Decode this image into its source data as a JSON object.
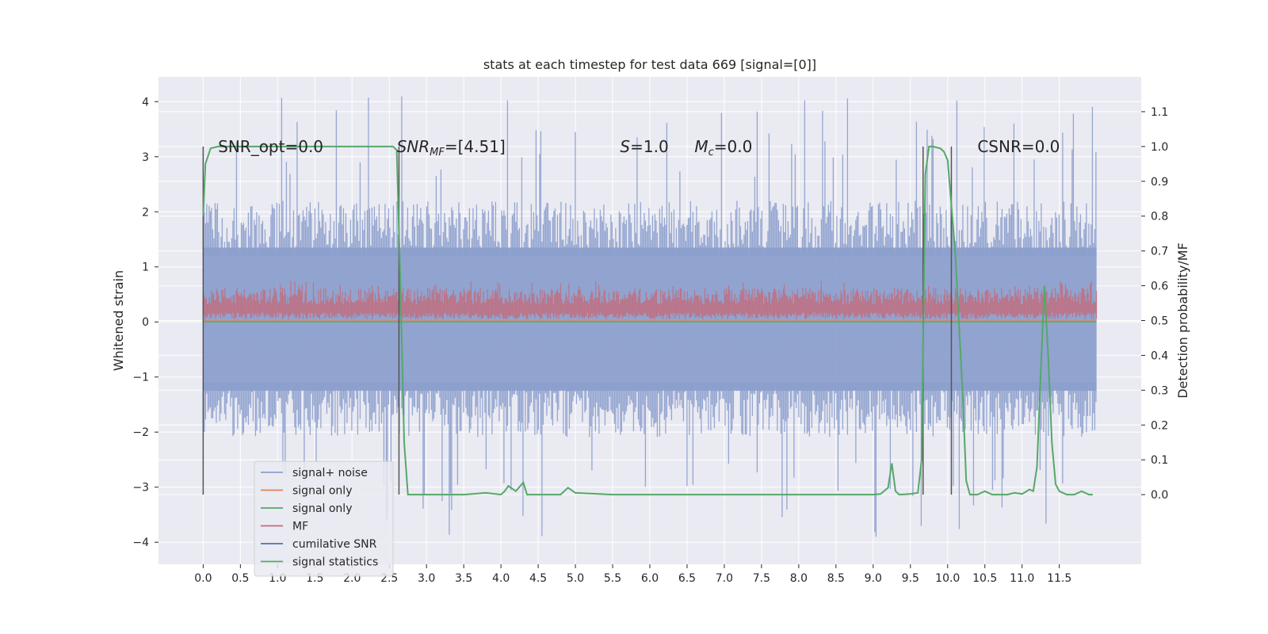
{
  "chart_data": {
    "type": "line",
    "title": "stats at each timestep for test data 669 [signal=[0]]",
    "xlabel": "",
    "ylabel_left": "Whitened strain",
    "ylabel_right": "Detection probability/MF",
    "xlim": [
      -0.6,
      12.6
    ],
    "ylim_left": [
      -4.4,
      4.45
    ],
    "ylim_right": [
      -0.2,
      1.2
    ],
    "x_ticks": [
      "0.0",
      "0.5",
      "1.0",
      "1.5",
      "2.0",
      "2.5",
      "3.0",
      "3.5",
      "4.0",
      "4.5",
      "5.0",
      "5.5",
      "6.0",
      "6.5",
      "7.0",
      "7.5",
      "8.0",
      "8.5",
      "9.0",
      "9.5",
      "10.0",
      "10.5",
      "11.0",
      "11.5"
    ],
    "y_ticks_left": [
      "4",
      "3",
      "2",
      "1",
      "0",
      "−1",
      "−2",
      "−3",
      "−4"
    ],
    "y_ticks_right": [
      "1.1",
      "1.0",
      "0.9",
      "0.8",
      "0.7",
      "0.6",
      "0.5",
      "0.4",
      "0.3",
      "0.2",
      "0.1",
      "0.0"
    ],
    "grid": true,
    "legend_position": "lower-left",
    "colors": {
      "background": "#eaeaf2",
      "grid": "#ffffff",
      "noise": "#8c9fcc",
      "mf": "#c46b7a",
      "signal_orange": "#dd8452",
      "signal_green": "#55a868",
      "cumulative": "#4c72b0",
      "stats": "#55a868",
      "markers": "#555555"
    },
    "annotations": [
      {
        "text": "SNR_opt=0.0",
        "x": 0.2,
        "y": 3.2
      },
      {
        "text": "SNR_MF=[4.51]",
        "x": 2.6,
        "y": 3.2
      },
      {
        "text": "S=1.0",
        "x": 5.6,
        "y": 3.2
      },
      {
        "text": "M_c=0.0",
        "x": 6.6,
        "y": 3.2
      },
      {
        "text": "CSNR=0.0",
        "x": 10.4,
        "y": 3.2
      }
    ],
    "vertical_markers_x": [
      0.0,
      2.63,
      9.67,
      10.05
    ],
    "noise_envelope": {
      "x_range": [
        0.0,
        12.0
      ],
      "typical_min": -1.9,
      "typical_max": 2.2,
      "peaks_max": 4.1,
      "peaks_min": -3.9
    },
    "mf_band": {
      "x_range": [
        0.0,
        12.0
      ],
      "min": 0.05,
      "max": 0.75
    },
    "detection_probability": {
      "x": [
        0.0,
        0.03,
        0.1,
        0.2,
        0.5,
        1.0,
        1.5,
        2.0,
        2.4,
        2.55,
        2.6,
        2.65,
        2.7,
        2.75,
        3.0,
        3.5,
        3.8,
        4.0,
        4.05,
        4.1,
        4.2,
        4.3,
        4.35,
        4.5,
        4.8,
        4.9,
        5.0,
        5.5,
        6.0,
        7.0,
        8.0,
        9.0,
        9.1,
        9.2,
        9.25,
        9.3,
        9.35,
        9.5,
        9.6,
        9.65,
        9.7,
        9.75,
        9.8,
        9.9,
        9.95,
        10.0,
        10.1,
        10.2,
        10.25,
        10.3,
        10.4,
        10.5,
        10.6,
        10.7,
        10.8,
        10.9,
        11.0,
        11.1,
        11.15,
        11.2,
        11.25,
        11.3,
        11.35,
        11.4,
        11.45,
        11.5,
        11.6,
        11.7,
        11.8,
        11.9,
        11.95
      ],
      "values": [
        0.8,
        0.95,
        0.995,
        1.0,
        1.0,
        1.0,
        1.0,
        1.0,
        1.0,
        1.0,
        0.99,
        0.6,
        0.15,
        0.0,
        0.0,
        0.0,
        0.005,
        0.0,
        0.01,
        0.025,
        0.01,
        0.035,
        0.0,
        0.0,
        0.0,
        0.02,
        0.005,
        0.0,
        0.0,
        0.0,
        0.0,
        0.0,
        0.002,
        0.02,
        0.09,
        0.01,
        0.0,
        0.002,
        0.005,
        0.1,
        0.92,
        1.0,
        1.0,
        0.995,
        0.985,
        0.96,
        0.7,
        0.3,
        0.04,
        0.0,
        0.0,
        0.01,
        0.0,
        0.0,
        0.0,
        0.005,
        0.002,
        0.015,
        0.01,
        0.08,
        0.35,
        0.6,
        0.4,
        0.15,
        0.03,
        0.01,
        0.0,
        0.0,
        0.01,
        0.0,
        0.0
      ]
    },
    "legend": [
      {
        "label": "signal+ noise",
        "color_key": "noise"
      },
      {
        "label": "signal only",
        "color_key": "signal_orange"
      },
      {
        "label": "signal only",
        "color_key": "signal_green"
      },
      {
        "label": "MF",
        "color_key": "mf"
      },
      {
        "label": "cumilative SNR",
        "color_key": "cumulative"
      },
      {
        "label": "signal statistics",
        "color_key": "stats"
      }
    ]
  }
}
